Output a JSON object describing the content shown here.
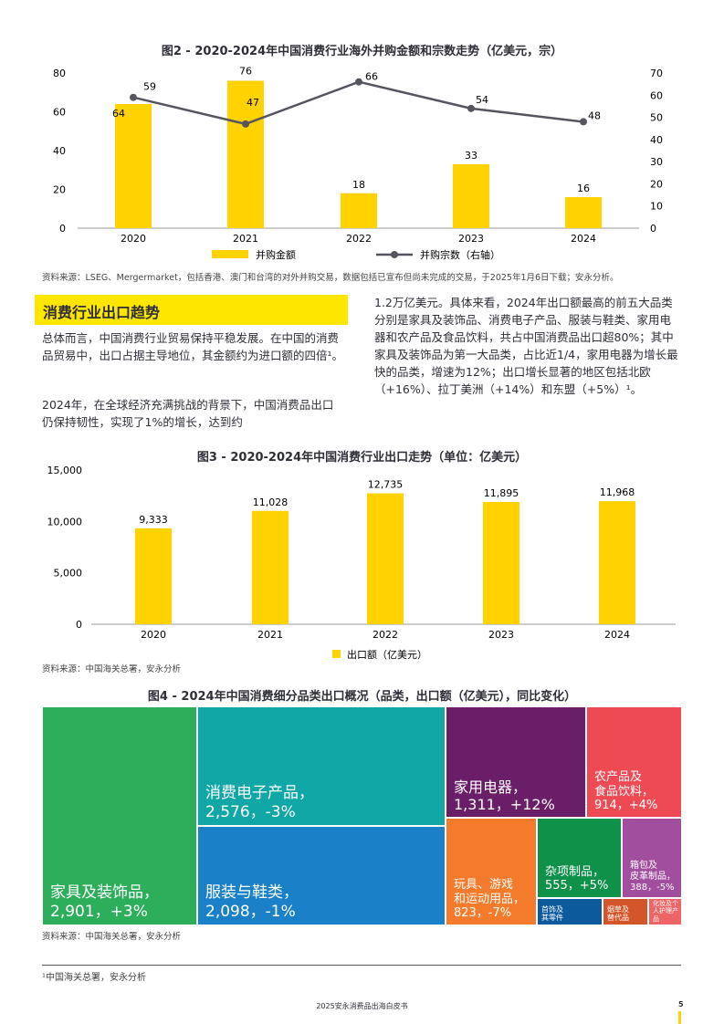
{
  "chart_data": [
    {
      "type": "bar+line",
      "title": "图2 - 2020-2024年中国消费行业海外并购金额和宗数走势（亿美元，宗）",
      "categories": [
        "2020",
        "2021",
        "2022",
        "2023",
        "2024"
      ],
      "series": [
        {
          "name": "并购金额",
          "type": "bar",
          "axis": "left",
          "values": [
            64,
            76,
            18,
            33,
            16
          ],
          "color": "#FFD200"
        },
        {
          "name": "并购宗数（右轴）",
          "type": "line",
          "axis": "right",
          "values": [
            59,
            47,
            66,
            54,
            48
          ],
          "color": "#555560"
        }
      ],
      "ylim_left": [
        0,
        80
      ],
      "yticks_left": [
        "0",
        "20",
        "40",
        "60",
        "80"
      ],
      "ylim_right": [
        0,
        70
      ],
      "yticks_right": [
        "0",
        "10",
        "20",
        "30",
        "40",
        "50",
        "60",
        "70"
      ],
      "legend": "bottom",
      "source": "资料来源：LSEG、Mergermarket，包括香港、澳门和台湾的对外并购交易，数据包括已宣布但尚未完成的交易，于2025年1月6日下载；安永分析。"
    },
    {
      "type": "bar",
      "title": "图3 - 2020-2024年中国消费行业出口走势（单位：亿美元）",
      "categories": [
        "2020",
        "2021",
        "2022",
        "2023",
        "2024"
      ],
      "series": [
        {
          "name": "出口额（亿美元）",
          "values": [
            9333,
            11028,
            12735,
            11895,
            11968
          ],
          "labels": [
            "9,333",
            "11,028",
            "12,735",
            "11,895",
            "11,968"
          ],
          "color": "#FFD200"
        }
      ],
      "ylim": [
        0,
        15000
      ],
      "yticks": [
        "0",
        "5,000",
        "10,000",
        "15,000"
      ],
      "legend": "bottom",
      "source": "资料来源：中国海关总署，安永分析"
    },
    {
      "type": "treemap",
      "title": "图4 - 2024年中国消费细分品类出口概况（品类，出口额（亿美元），同比变化）",
      "items": [
        {
          "label": "家具及装饰品，\n2,901，+3%",
          "color": "#2DAE5B"
        },
        {
          "label": "消费电子产品，\n2,576，-3%",
          "color": "#10A7A6"
        },
        {
          "label": "服装与鞋类，\n2,098，-1%",
          "color": "#1A80C8"
        },
        {
          "label": "家用电器，\n1,311，+12%",
          "color": "#6A1E68"
        },
        {
          "label": "农产品及\n食品饮料，\n914，+4%",
          "color": "#EE4A54"
        },
        {
          "label": "玩具、游戏\n和运动用品，\n823，-7%",
          "color": "#F37B2B"
        },
        {
          "label": "杂项制品，\n555，+5%",
          "color": "#0F914A"
        },
        {
          "label": "箱包及\n皮革制品，\n388，-5%",
          "color": "#A24E9E"
        },
        {
          "label": "首饰及\n其零件",
          "color": "#0C5A9C"
        },
        {
          "label": "烟草及\n替代品",
          "color": "#D3552A"
        },
        {
          "label": "化妆及个\n人护理产\n品",
          "color": "#EF6565"
        }
      ],
      "source": "资料来源：中国海关总署，安永分析"
    }
  ],
  "section": {
    "heading": "消费行业出口趋势"
  },
  "text": {
    "left_p1": "总体而言，中国消费行业贸易保持平稳发展。在中国的消费品贸易中，出口占据主导地位，其金额约为进口额的四倍¹。",
    "left_p2": "2024年，在全球经济充满挑战的背景下，中国消费品出口仍保持韧性，实现了1%的增长，达到约",
    "right_p1": "1.2万亿美元。具体来看，2024年出口额最高的前五大品类分别是家具及装饰品、消费电子产品、服装与鞋类、家用电器和农产品及食品饮料，共占中国消费品出口超80%；其中家具及装饰品为第一大品类，占比近1/4，家用电器为增长最快的品类，增速为12%；出口增长显著的地区包括北欧（+16%）、拉丁美洲（+14%）和东盟（+5%）¹。"
  },
  "footnote": "¹中国海关总署，安永分析",
  "footer": {
    "title": "2025安永消费品出海白皮书",
    "page": "5"
  }
}
